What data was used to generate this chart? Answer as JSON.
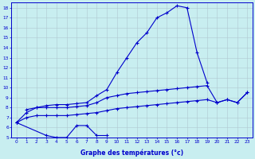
{
  "xlabel": "Graphe des températures (°c)",
  "bg_color": "#c8eef0",
  "line_color": "#0000cc",
  "grid_color": "#b0c8d0",
  "yticks": [
    5,
    6,
    7,
    8,
    9,
    10,
    11,
    12,
    13,
    14,
    15,
    16,
    17,
    18
  ],
  "xticks": [
    0,
    1,
    2,
    3,
    4,
    5,
    6,
    7,
    8,
    9,
    10,
    11,
    12,
    13,
    14,
    15,
    16,
    17,
    18,
    19,
    20,
    21,
    22,
    23
  ],
  "curve_max_x": [
    0,
    1,
    2,
    3,
    4,
    5,
    6,
    7,
    8,
    9,
    10,
    11,
    12,
    13,
    14,
    15,
    16,
    17,
    18,
    19
  ],
  "curve_max_y": [
    6.5,
    7.5,
    8.0,
    8.2,
    8.3,
    8.3,
    8.4,
    8.5,
    9.2,
    9.8,
    11.5,
    13.0,
    14.5,
    15.5,
    17.0,
    17.5,
    18.2,
    18.0,
    13.5,
    10.5
  ],
  "curve_min_x": [
    0,
    3,
    4,
    5,
    6,
    7,
    8,
    9
  ],
  "curve_min_y": [
    6.5,
    5.2,
    5.0,
    5.0,
    6.2,
    6.2,
    5.2,
    5.2
  ],
  "curve_mean1_x": [
    1,
    2,
    3,
    4,
    5,
    6,
    7,
    8,
    9,
    10,
    11,
    12,
    13,
    14,
    15,
    16,
    17,
    18,
    19,
    20,
    21,
    22,
    23
  ],
  "curve_mean1_y": [
    7.8,
    8.0,
    8.0,
    8.0,
    8.0,
    8.1,
    8.2,
    8.5,
    9.0,
    9.2,
    9.4,
    9.5,
    9.6,
    9.7,
    9.8,
    9.9,
    10.0,
    10.1,
    10.2,
    8.5,
    8.8,
    8.5,
    9.5
  ],
  "curve_mean2_x": [
    0,
    1,
    2,
    3,
    4,
    5,
    6,
    7,
    8,
    9,
    10,
    11,
    12,
    13,
    14,
    15,
    16,
    17,
    18,
    19,
    20,
    21,
    22,
    23
  ],
  "curve_mean2_y": [
    6.5,
    7.0,
    7.2,
    7.2,
    7.2,
    7.2,
    7.3,
    7.4,
    7.5,
    7.7,
    7.9,
    8.0,
    8.1,
    8.2,
    8.3,
    8.4,
    8.5,
    8.6,
    8.7,
    8.8,
    8.5,
    8.8,
    8.5,
    9.5
  ]
}
